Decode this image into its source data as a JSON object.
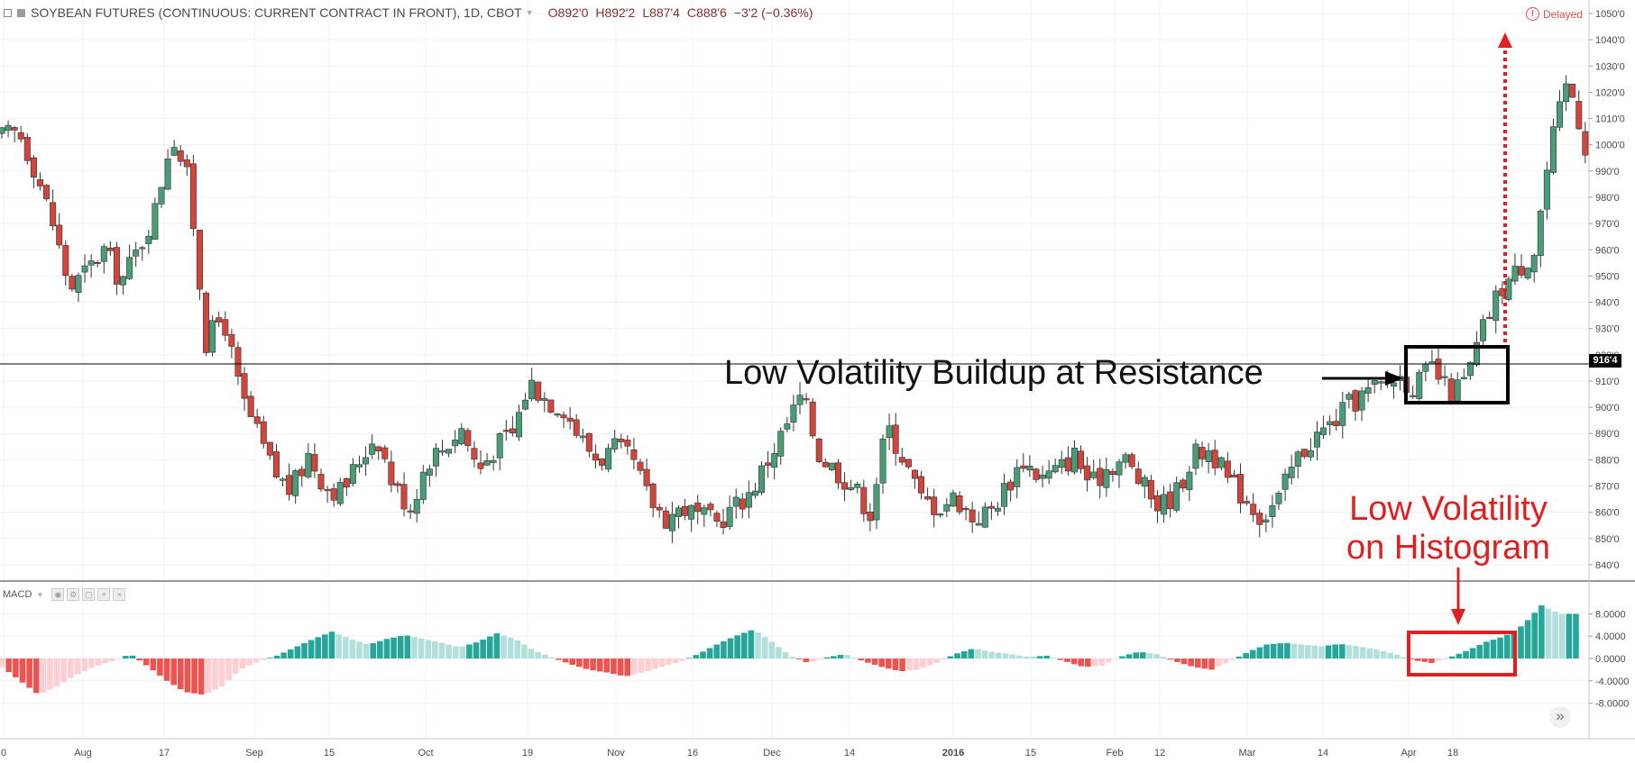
{
  "header": {
    "symbol": "SOYBEAN FUTURES (CONTINUOUS: CURRENT CONTRACT IN FRONT), 1D, CBOT",
    "open": "O892'0",
    "high": "H892'2",
    "low": "L887'4",
    "close": "C888'6",
    "change": "−3'2 (−0.36%)",
    "delayed": "Delayed"
  },
  "price_axis": {
    "labels": [
      "1050'0",
      "1040'0",
      "1030'0",
      "1020'0",
      "1010'0",
      "1000'0",
      "990'0",
      "980'0",
      "970'0",
      "960'0",
      "950'0",
      "940'0",
      "930'0",
      "920'0",
      "910'0",
      "900'0",
      "890'0",
      "880'0",
      "870'0",
      "860'0",
      "850'0",
      "840'0"
    ],
    "last_price_tag": "916'4"
  },
  "macd_panel": {
    "label": "MACD",
    "axis_labels": [
      "8.0000",
      "4.0000",
      "0.0000",
      "-4.0000",
      "-8.0000"
    ]
  },
  "time_axis": {
    "labels": [
      "0",
      "Aug",
      "17",
      "Sep",
      "15",
      "Oct",
      "19",
      "Nov",
      "16",
      "Dec",
      "14",
      "2016",
      "15",
      "Feb",
      "12",
      "Mar",
      "14",
      "Apr",
      "18"
    ]
  },
  "annotations": {
    "resistance": "Low Volatility Buildup at Resistance",
    "histogram_line1": "Low Volatility",
    "histogram_line2": "on Histogram"
  },
  "colors": {
    "up": "#4a9c78",
    "down": "#d0463c",
    "hist_pos_strong": "#26a69a",
    "hist_pos_weak": "#b2dfdb",
    "hist_neg_strong": "#ef5350",
    "hist_neg_weak": "#ffcdd2",
    "annotation_red": "#e02020"
  },
  "chart_data": [
    {
      "type": "candlestick",
      "title": "SOYBEAN FUTURES (CONTINUOUS: CURRENT CONTRACT IN FRONT), 1D, CBOT",
      "ylim": [
        835,
        1050
      ],
      "resistance_level": 916.5,
      "x_tick_labels": [
        "0",
        "Aug",
        "17",
        "Sep",
        "15",
        "Oct",
        "19",
        "Nov",
        "16",
        "Dec",
        "14",
        "2016",
        "15",
        "Feb",
        "12",
        "Mar",
        "14",
        "Apr",
        "18"
      ],
      "approx_close_path": [
        [
          0,
          1003
        ],
        [
          4,
          1005
        ],
        [
          8,
          990
        ],
        [
          12,
          970
        ],
        [
          16,
          945
        ],
        [
          20,
          952
        ],
        [
          24,
          960
        ],
        [
          28,
          948
        ],
        [
          32,
          960
        ],
        [
          36,
          975
        ],
        [
          40,
          1005
        ],
        [
          44,
          985
        ],
        [
          48,
          925
        ],
        [
          52,
          935
        ],
        [
          56,
          905
        ],
        [
          60,
          890
        ],
        [
          64,
          875
        ],
        [
          68,
          868
        ],
        [
          72,
          882
        ],
        [
          76,
          870
        ],
        [
          80,
          868
        ],
        [
          84,
          880
        ],
        [
          88,
          890
        ],
        [
          92,
          870
        ],
        [
          96,
          862
        ],
        [
          100,
          880
        ],
        [
          104,
          885
        ],
        [
          108,
          892
        ],
        [
          112,
          876
        ],
        [
          116,
          885
        ],
        [
          120,
          890
        ],
        [
          124,
          910
        ],
        [
          128,
          903
        ],
        [
          132,
          900
        ],
        [
          136,
          888
        ],
        [
          140,
          880
        ],
        [
          144,
          884
        ],
        [
          148,
          880
        ],
        [
          152,
          865
        ],
        [
          156,
          858
        ],
        [
          160,
          862
        ],
        [
          164,
          858
        ],
        [
          168,
          856
        ],
        [
          172,
          862
        ],
        [
          176,
          868
        ],
        [
          180,
          880
        ],
        [
          184,
          892
        ],
        [
          188,
          905
        ],
        [
          192,
          882
        ],
        [
          196,
          876
        ],
        [
          200,
          870
        ],
        [
          204,
          860
        ],
        [
          208,
          893
        ],
        [
          212,
          880
        ],
        [
          216,
          865
        ],
        [
          220,
          862
        ],
        [
          224,
          866
        ],
        [
          228,
          858
        ],
        [
          232,
          860
        ],
        [
          236,
          870
        ],
        [
          240,
          880
        ],
        [
          244,
          873
        ],
        [
          248,
          876
        ],
        [
          252,
          882
        ],
        [
          256,
          870
        ],
        [
          260,
          878
        ],
        [
          264,
          880
        ],
        [
          268,
          870
        ],
        [
          272,
          862
        ],
        [
          276,
          868
        ],
        [
          280,
          882
        ],
        [
          284,
          884
        ],
        [
          288,
          872
        ],
        [
          292,
          866
        ],
        [
          296,
          858
        ],
        [
          300,
          865
        ],
        [
          304,
          880
        ],
        [
          308,
          888
        ],
        [
          312,
          893
        ],
        [
          316,
          900
        ],
        [
          320,
          905
        ],
        [
          324,
          908
        ],
        [
          328,
          912
        ],
        [
          332,
          908
        ],
        [
          336,
          915
        ],
        [
          340,
          905
        ],
        [
          344,
          910
        ],
        [
          348,
          930
        ],
        [
          352,
          945
        ],
        [
          356,
          952
        ],
        [
          360,
          960
        ],
        [
          364,
          1000
        ],
        [
          368,
          1025
        ],
        [
          372,
          1000
        ]
      ]
    },
    {
      "type": "bar",
      "title": "MACD",
      "ylim": [
        -11,
        10.5
      ],
      "histogram_approx": [
        [
          0,
          -1.5
        ],
        [
          4,
          -4
        ],
        [
          8,
          -6.5
        ],
        [
          12,
          -5
        ],
        [
          16,
          -3
        ],
        [
          20,
          -1.5
        ],
        [
          24,
          -0.5
        ],
        [
          28,
          0.8
        ],
        [
          32,
          -1.5
        ],
        [
          36,
          -4
        ],
        [
          40,
          -6
        ],
        [
          44,
          -6.5
        ],
        [
          48,
          -5
        ],
        [
          52,
          -2
        ],
        [
          56,
          -0.5
        ],
        [
          60,
          0.5
        ],
        [
          64,
          2
        ],
        [
          68,
          3.5
        ],
        [
          72,
          4.8
        ],
        [
          76,
          3.5
        ],
        [
          80,
          2.5
        ],
        [
          84,
          3.5
        ],
        [
          88,
          4.2
        ],
        [
          92,
          3.5
        ],
        [
          96,
          2.8
        ],
        [
          100,
          2
        ],
        [
          104,
          3
        ],
        [
          108,
          4.5
        ],
        [
          112,
          3.5
        ],
        [
          116,
          1.5
        ],
        [
          120,
          0.2
        ],
        [
          124,
          -1
        ],
        [
          128,
          -2
        ],
        [
          132,
          -2.5
        ],
        [
          136,
          -3.2
        ],
        [
          140,
          -2.5
        ],
        [
          144,
          -1.5
        ],
        [
          148,
          -0.6
        ],
        [
          152,
          0.8
        ],
        [
          156,
          2.5
        ],
        [
          160,
          4
        ],
        [
          164,
          5.2
        ],
        [
          168,
          3
        ],
        [
          172,
          0.5
        ],
        [
          176,
          -0.8
        ],
        [
          180,
          0.2
        ],
        [
          184,
          0.8
        ],
        [
          188,
          -0.5
        ],
        [
          192,
          -1.5
        ],
        [
          196,
          -2.3
        ],
        [
          200,
          -2
        ],
        [
          204,
          -0.8
        ],
        [
          208,
          0.8
        ],
        [
          212,
          1.8
        ],
        [
          216,
          1.2
        ],
        [
          220,
          0.8
        ],
        [
          224,
          0.3
        ],
        [
          228,
          0.5
        ],
        [
          232,
          -0.5
        ],
        [
          236,
          -1.5
        ],
        [
          240,
          -1.3
        ],
        [
          244,
          0.3
        ],
        [
          248,
          1.2
        ],
        [
          252,
          0.8
        ],
        [
          256,
          -0.5
        ],
        [
          260,
          -1.5
        ],
        [
          264,
          -2
        ],
        [
          268,
          -0.5
        ],
        [
          272,
          1.2
        ],
        [
          276,
          2.5
        ],
        [
          280,
          2.8
        ],
        [
          284,
          2.5
        ],
        [
          288,
          2.2
        ],
        [
          292,
          2.6
        ],
        [
          296,
          2.2
        ],
        [
          300,
          1.6
        ],
        [
          304,
          0.8
        ],
        [
          308,
          -0.3
        ],
        [
          312,
          -0.8
        ],
        [
          316,
          0.2
        ],
        [
          320,
          1.5
        ],
        [
          324,
          3
        ],
        [
          328,
          4
        ],
        [
          332,
          6
        ],
        [
          336,
          9.5
        ],
        [
          340,
          8
        ]
      ],
      "bar_colors_legend": [
        "strong positive",
        "weak positive",
        "strong negative",
        "weak negative"
      ]
    }
  ]
}
